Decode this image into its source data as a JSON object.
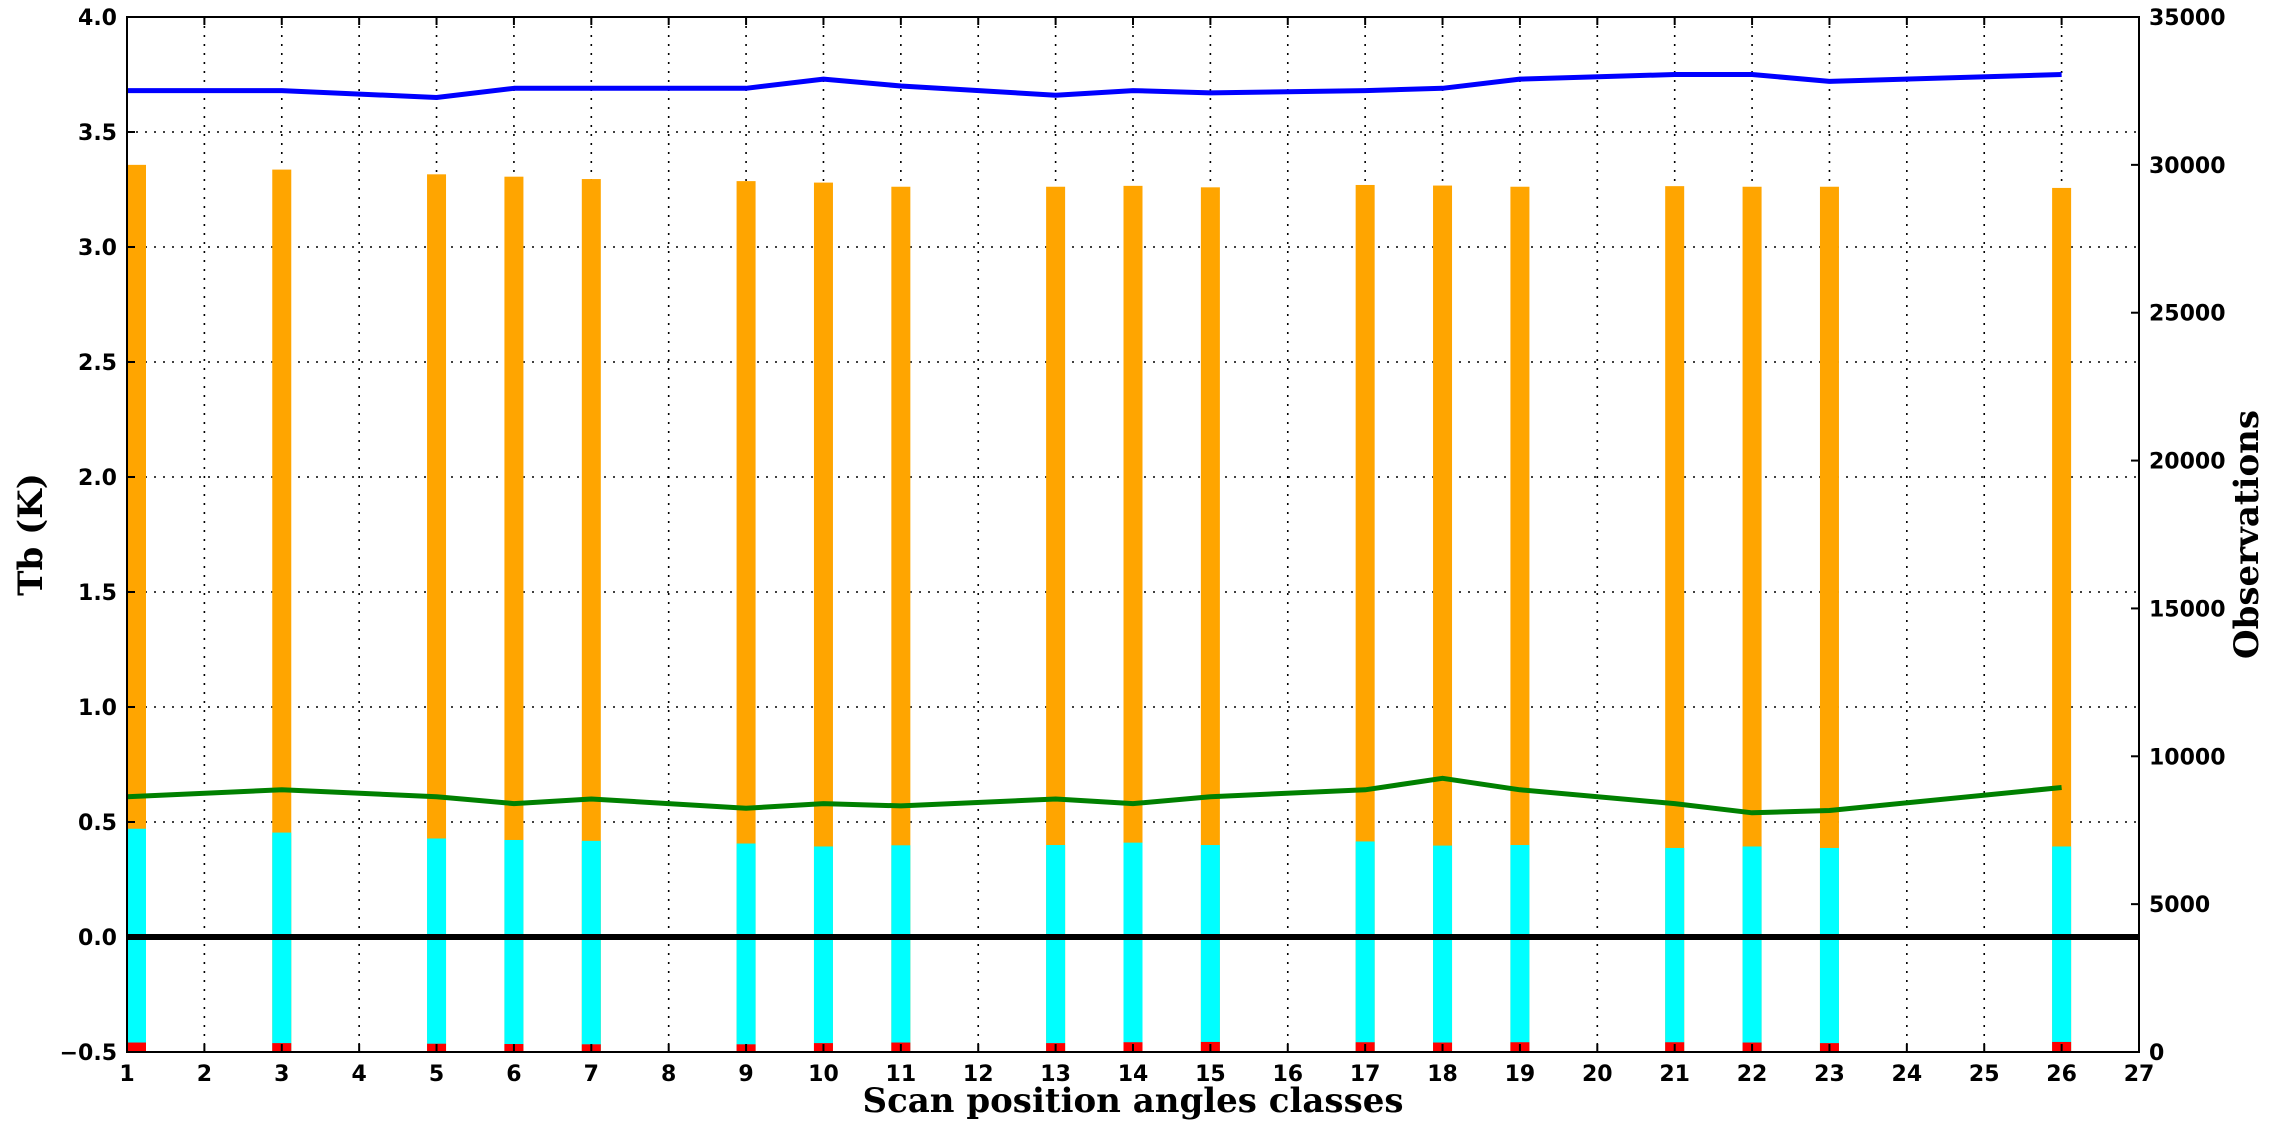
{
  "chart_data": {
    "type": "bar",
    "xlabel": "Scan position angles classes",
    "ylabel_left": "Tb (K)",
    "ylabel_right": "Observations",
    "xlim": [
      1,
      27
    ],
    "ylim_left": [
      -0.5,
      4.0
    ],
    "ylim_right": [
      0,
      35000
    ],
    "grid": true,
    "x_ticks": [
      1,
      2,
      3,
      4,
      5,
      6,
      7,
      8,
      9,
      10,
      11,
      12,
      13,
      14,
      15,
      16,
      17,
      18,
      19,
      20,
      21,
      22,
      23,
      24,
      25,
      26,
      27
    ],
    "y_ticks_left": [
      -0.5,
      0.0,
      0.5,
      1.0,
      1.5,
      2.0,
      2.5,
      3.0,
      3.5,
      4.0
    ],
    "y_ticks_left_labels": [
      "−0.5",
      "0.0",
      "0.5",
      "1.0",
      "1.5",
      "2.0",
      "2.5",
      "3.0",
      "3.5",
      "4.0"
    ],
    "y_ticks_right": [
      0,
      5000,
      10000,
      15000,
      20000,
      25000,
      30000,
      35000
    ],
    "y_ticks_right_labels": [
      "0",
      "5000",
      "10000",
      "15000",
      "20000",
      "25000",
      "30000",
      "35000"
    ],
    "x": [
      1,
      3,
      5,
      6,
      7,
      9,
      10,
      11,
      13,
      14,
      15,
      17,
      18,
      19,
      21,
      22,
      23,
      26
    ],
    "series": [
      {
        "axis": "right",
        "kind": "bar",
        "color": "#ffa500",
        "values": [
          30000,
          29840,
          29680,
          29600,
          29520,
          29450,
          29400,
          29260,
          29260,
          29290,
          29240,
          29320,
          29300,
          29260,
          29280,
          29260,
          29260,
          29220
        ]
      },
      {
        "axis": "right",
        "kind": "bar",
        "color": "#00ffff",
        "values": [
          7550,
          7420,
          7220,
          7170,
          7140,
          7050,
          6950,
          6990,
          7000,
          7080,
          7000,
          7120,
          6980,
          7000,
          6900,
          6950,
          6900,
          6950
        ]
      },
      {
        "axis": "right",
        "kind": "bar",
        "color": "#ff0000",
        "values": [
          320,
          300,
          280,
          270,
          260,
          260,
          300,
          320,
          300,
          330,
          340,
          330,
          320,
          330,
          330,
          320,
          300,
          340
        ]
      },
      {
        "axis": "left",
        "kind": "line",
        "color": "#0000ff",
        "values": [
          3.68,
          3.68,
          3.65,
          3.69,
          3.69,
          3.69,
          3.73,
          3.7,
          3.66,
          3.68,
          3.67,
          3.68,
          3.69,
          3.73,
          3.75,
          3.75,
          3.72,
          3.75
        ]
      },
      {
        "axis": "left",
        "kind": "line",
        "color": "#008000",
        "values": [
          0.61,
          0.64,
          0.61,
          0.58,
          0.6,
          0.56,
          0.58,
          0.57,
          0.6,
          0.58,
          0.61,
          0.64,
          0.69,
          0.64,
          0.58,
          0.54,
          0.55,
          0.65
        ]
      }
    ],
    "reference_line": {
      "axis": "left",
      "value": 0.0,
      "color": "#000000"
    }
  }
}
